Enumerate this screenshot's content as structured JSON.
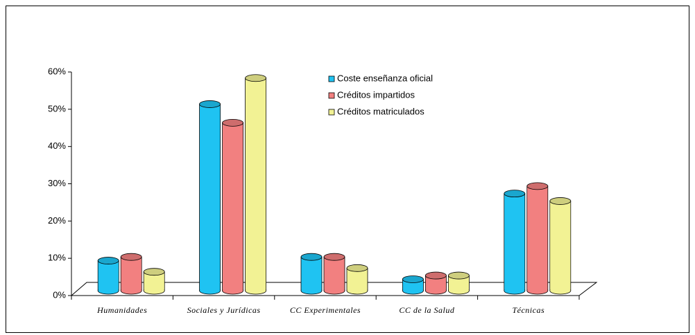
{
  "chart_data": {
    "type": "bar",
    "categories": [
      "Humanidades",
      "Sociales y Jurídicas",
      "CC Experimentales",
      "CC de la Salud",
      "Técnicas"
    ],
    "series": [
      {
        "name": "Coste enseñanza oficial",
        "color": "#1fc3f2",
        "values": [
          9,
          51,
          10,
          4,
          27
        ]
      },
      {
        "name": "Créditos impartidos",
        "color": "#f28080",
        "values": [
          10,
          46,
          10,
          5,
          29
        ]
      },
      {
        "name": "Créditos matriculados",
        "color": "#f2f294",
        "values": [
          6,
          58,
          7,
          5,
          25
        ]
      }
    ],
    "ylim": [
      0,
      60
    ],
    "yticks": [
      {
        "value": 0,
        "label": "0%"
      },
      {
        "value": 10,
        "label": "10%"
      },
      {
        "value": 20,
        "label": "20%"
      },
      {
        "value": 30,
        "label": "30%"
      },
      {
        "value": 40,
        "label": "40%"
      },
      {
        "value": 50,
        "label": "50%"
      },
      {
        "value": 60,
        "label": "60%"
      }
    ]
  }
}
